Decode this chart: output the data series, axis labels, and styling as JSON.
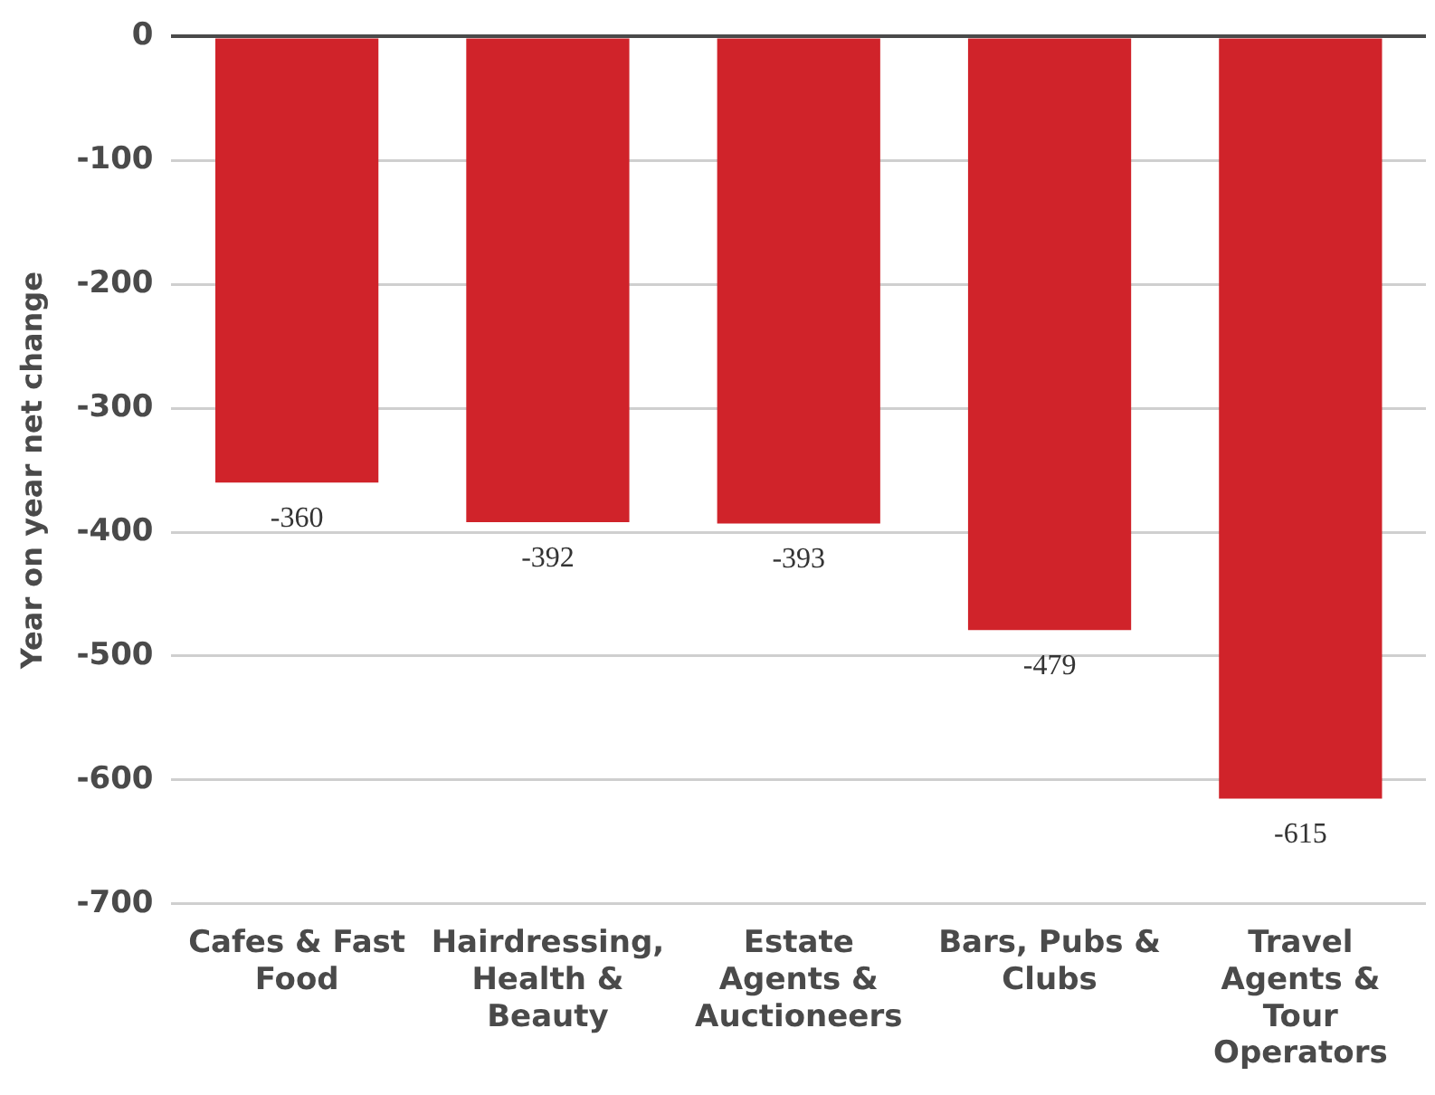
{
  "chart_data": {
    "type": "bar",
    "ylabel": "Year on year net change",
    "categories": [
      "Cafes & Fast Food",
      "Hairdressing, Health & Beauty",
      "Estate Agents & Auctioneers",
      "Bars, Pubs & Clubs",
      "Travel Agents & Tour Operators"
    ],
    "values": [
      -360,
      -392,
      -393,
      -479,
      -615
    ],
    "color": "#d0232a",
    "ylim": [
      -700,
      0
    ],
    "yticks": [
      0,
      -100,
      -200,
      -300,
      -400,
      -500,
      -600,
      -700
    ],
    "grid": "y",
    "data_labels": true
  }
}
